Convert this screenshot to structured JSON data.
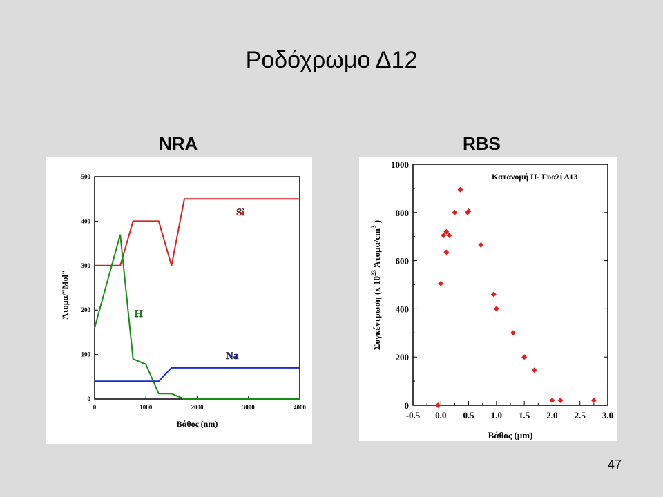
{
  "slide": {
    "title": "Ροδόχρωμο Δ12",
    "page_number": "47"
  },
  "chart_data": [
    {
      "type": "line",
      "heading": "NRA",
      "xlabel": "Βάθος (nm)",
      "ylabel": "Άτομα/\"Mol\"",
      "xlim": [
        0,
        4000
      ],
      "ylim": [
        0,
        500
      ],
      "xticks": [
        0,
        1000,
        2000,
        3000,
        4000
      ],
      "yticks": [
        0,
        100,
        200,
        300,
        400,
        500
      ],
      "grid": false,
      "series": [
        {
          "name": "Si",
          "color": "#d42020",
          "x": [
            0,
            500,
            750,
            1250,
            1500,
            1750,
            4000
          ],
          "y": [
            300,
            300,
            400,
            400,
            300,
            450,
            450
          ]
        },
        {
          "name": "H",
          "color": "#1a8a1a",
          "x": [
            0,
            500,
            750,
            1000,
            1250,
            1500,
            1750,
            4000
          ],
          "y": [
            160,
            370,
            90,
            78,
            12,
            12,
            0,
            0
          ]
        },
        {
          "name": "Na",
          "color": "#1a2ad4",
          "x": [
            0,
            1250,
            1500,
            4000
          ],
          "y": [
            40,
            40,
            70,
            70
          ]
        }
      ]
    },
    {
      "type": "scatter",
      "heading": "RBS",
      "annotation": "Κατανομή Η- Γυαλί Δ13",
      "xlabel": "Βάθος (μm)",
      "ylabel_main": "Συγκέντρωση (x 10",
      "ylabel_exp": "23",
      "ylabel_unit": "Άτομα/cm",
      "ylabel_unit_exp": "3",
      "ylabel_close": ")",
      "xlim": [
        -0.5,
        3.0
      ],
      "ylim": [
        0,
        1000
      ],
      "xticks": [
        "-0.5",
        "0.0",
        "0.5",
        "1.0",
        "1.5",
        "2.0",
        "2.5",
        "3.0"
      ],
      "yticks": [
        "0",
        "200",
        "400",
        "600",
        "800",
        "1000"
      ],
      "grid": false,
      "color": "#e02020",
      "x": [
        -0.05,
        0.0,
        0.05,
        0.1,
        0.1,
        0.15,
        0.25,
        0.35,
        0.48,
        0.5,
        0.72,
        0.95,
        1.0,
        1.3,
        1.5,
        1.68,
        2.0,
        2.15,
        2.75
      ],
      "y": [
        0,
        505,
        705,
        720,
        635,
        705,
        800,
        895,
        800,
        805,
        665,
        460,
        400,
        300,
        200,
        145,
        20,
        20,
        20
      ]
    }
  ]
}
